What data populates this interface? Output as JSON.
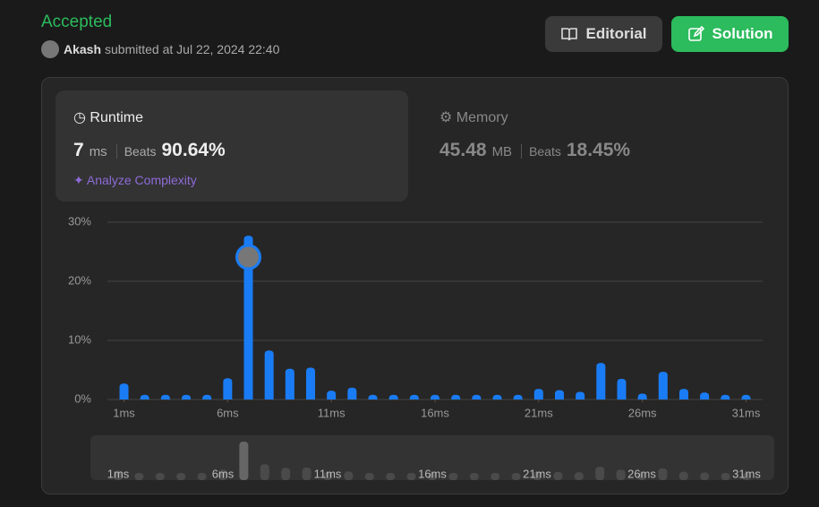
{
  "header": {
    "status": "Accepted",
    "user": "Akash",
    "submitted": "submitted at Jul 22, 2024 22:40",
    "editorial": "Editorial",
    "solution": "Solution"
  },
  "runtime": {
    "label": "Runtime",
    "value": "7",
    "unit": "ms",
    "beats_label": "Beats",
    "beats": "90.64%",
    "analyze": "Analyze Complexity"
  },
  "memory": {
    "label": "Memory",
    "value": "45.48",
    "unit": "MB",
    "beats_label": "Beats",
    "beats": "18.45%"
  },
  "chart_data": {
    "type": "bar",
    "color": "#1a7cf5",
    "x": [
      1,
      2,
      3,
      4,
      5,
      6,
      7,
      8,
      9,
      10,
      11,
      12,
      13,
      14,
      15,
      16,
      17,
      18,
      19,
      20,
      21,
      22,
      23,
      24,
      25,
      26,
      27,
      28,
      29,
      30,
      31
    ],
    "values": [
      2.7,
      0.8,
      0.8,
      0.8,
      0.8,
      3.6,
      27.7,
      8.3,
      5.2,
      5.4,
      1.5,
      2.0,
      0.8,
      0.8,
      0.8,
      0.8,
      0.8,
      0.8,
      0.8,
      0.8,
      1.8,
      1.6,
      1.3,
      6.2,
      3.5,
      1.0,
      4.7,
      1.8,
      1.2,
      0.8,
      0.8
    ],
    "xlim": [
      0.2,
      31.8
    ],
    "xticks": [
      {
        "value": 1,
        "label": "1ms"
      },
      {
        "value": 6,
        "label": "6ms"
      },
      {
        "value": 11,
        "label": "11ms"
      },
      {
        "value": 16,
        "label": "16ms"
      },
      {
        "value": 21,
        "label": "21ms"
      },
      {
        "value": 26,
        "label": "26ms"
      },
      {
        "value": 31,
        "label": "31ms"
      }
    ],
    "ylim": [
      0,
      30
    ],
    "yticks": [
      {
        "value": 0,
        "label": "0%"
      },
      {
        "value": 10,
        "label": "10%"
      },
      {
        "value": 20,
        "label": "20%"
      },
      {
        "value": 30,
        "label": "30%"
      }
    ],
    "grid": true
  }
}
